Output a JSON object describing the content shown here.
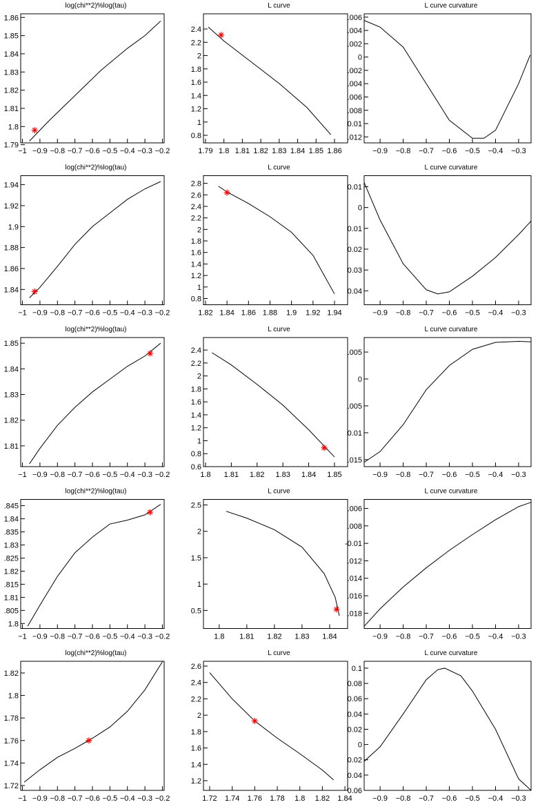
{
  "chart_data": [
    {
      "type": "line",
      "title": "log(chi**2)%log(tau)",
      "color": "#000000",
      "x": [
        -0.96,
        -0.85,
        -0.7,
        -0.55,
        -0.4,
        -0.3,
        -0.21
      ],
      "values": [
        1.792,
        1.803,
        1.817,
        1.831,
        1.843,
        1.85,
        1.858
      ],
      "highlight": {
        "x": -0.93,
        "y": 1.798,
        "color": "#ff0000"
      },
      "xlim": [
        -1.01,
        -0.19
      ],
      "ylim": [
        1.791,
        1.862
      ],
      "xticks": [
        {
          "value": -1,
          "label": "−1"
        },
        {
          "value": -0.9,
          "label": "−0.9"
        },
        {
          "value": -0.8,
          "label": "−0.8"
        },
        {
          "value": -0.7,
          "label": "−0.7"
        },
        {
          "value": -0.6,
          "label": "−0.6"
        },
        {
          "value": -0.5,
          "label": "−0.5"
        },
        {
          "value": -0.4,
          "label": "−0.4"
        },
        {
          "value": -0.3,
          "label": "−0.3"
        },
        {
          "value": -0.2,
          "label": "−0.2"
        }
      ],
      "yticks": [
        1.79,
        1.8,
        1.81,
        1.82,
        1.83,
        1.84,
        1.85,
        1.86
      ]
    },
    {
      "type": "line",
      "title": "L curve",
      "color": "#000000",
      "x": [
        1.7915,
        1.8,
        1.815,
        1.83,
        1.845,
        1.858
      ],
      "values": [
        2.43,
        2.22,
        1.9,
        1.58,
        1.22,
        0.81
      ],
      "highlight": {
        "x": 1.7985,
        "y": 2.31,
        "color": "#ff0000"
      },
      "xlim": [
        1.7889,
        1.8671
      ],
      "ylim": [
        0.686,
        2.629
      ],
      "xticks": [
        1.79,
        1.8,
        1.81,
        1.82,
        1.83,
        1.84,
        1.85,
        1.86
      ],
      "yticks": [
        0.8,
        1,
        1.2,
        1.4,
        1.6,
        1.8,
        2,
        2.2,
        2.4
      ]
    },
    {
      "type": "line",
      "title": "L curve curvature",
      "color": "#000000",
      "x": [
        -0.969,
        -0.9,
        -0.8,
        -0.7,
        -0.6,
        -0.5,
        -0.45,
        -0.4,
        -0.3,
        -0.25
      ],
      "values": [
        0.0055,
        0.0045,
        0.0015,
        -0.004,
        -0.0095,
        -0.0122,
        -0.0122,
        -0.011,
        -0.004,
        0.0003
      ],
      "xlim": [
        -0.969,
        -0.246
      ],
      "ylim": [
        -0.0129,
        0.0065
      ],
      "xticks": [
        {
          "value": -0.9,
          "label": "−0.9"
        },
        {
          "value": -0.8,
          "label": "−0.8"
        },
        {
          "value": -0.7,
          "label": "−0.7"
        },
        {
          "value": -0.6,
          "label": "−0.6"
        },
        {
          "value": -0.5,
          "label": "−0.5"
        },
        {
          "value": -0.4,
          "label": "−0.4"
        },
        {
          "value": -0.3,
          "label": "−0.3"
        }
      ],
      "yticks": [
        {
          "value": -0.012,
          "label": ".012"
        },
        {
          "value": -0.01,
          "label": "0.01"
        },
        {
          "value": -0.008,
          "label": ".008"
        },
        {
          "value": -0.006,
          "label": ".006"
        },
        {
          "value": -0.004,
          "label": ".004"
        },
        {
          "value": -0.002,
          "label": ".002"
        },
        0,
        {
          "value": 0.002,
          "label": ".002"
        },
        {
          "value": 0.004,
          "label": ".004"
        },
        {
          "value": 0.006,
          "label": ".006"
        }
      ]
    },
    {
      "type": "line",
      "title": "log(chi**2)%log(tau)",
      "color": "#000000",
      "x": [
        -0.96,
        -0.9,
        -0.8,
        -0.7,
        -0.6,
        -0.5,
        -0.4,
        -0.3,
        -0.21
      ],
      "values": [
        1.832,
        1.842,
        1.862,
        1.883,
        1.9,
        1.913,
        1.926,
        1.936,
        1.943
      ],
      "highlight": {
        "x": -0.93,
        "y": 1.838,
        "color": "#ff0000"
      },
      "xlim": [
        -1.01,
        -0.19
      ],
      "ylim": [
        1.8254,
        1.9486
      ],
      "xticks": [
        {
          "value": -1,
          "label": "−1"
        },
        {
          "value": -0.9,
          "label": "−0.9"
        },
        {
          "value": -0.8,
          "label": "−0.8"
        },
        {
          "value": -0.7,
          "label": "−0.7"
        },
        {
          "value": -0.6,
          "label": "−0.6"
        },
        {
          "value": -0.5,
          "label": "−0.5"
        },
        {
          "value": -0.4,
          "label": "−0.4"
        },
        {
          "value": -0.3,
          "label": "−0.3"
        },
        {
          "value": -0.2,
          "label": "−0.2"
        }
      ],
      "yticks": [
        1.84,
        1.86,
        1.88,
        1.9,
        1.92,
        1.94
      ]
    },
    {
      "type": "line",
      "title": "L curve",
      "color": "#000000",
      "x": [
        1.832,
        1.84,
        1.86,
        1.88,
        1.9,
        1.92,
        1.94
      ],
      "values": [
        2.75,
        2.65,
        2.45,
        2.22,
        1.95,
        1.55,
        0.88
      ],
      "highlight": {
        "x": 1.84,
        "y": 2.64,
        "color": "#ff0000"
      },
      "xlim": [
        1.8181,
        1.9522
      ],
      "ylim": [
        0.692,
        2.933
      ],
      "xticks": [
        1.82,
        1.84,
        1.86,
        1.88,
        1.9,
        1.92,
        1.94
      ],
      "yticks": [
        0.8,
        1,
        1.2,
        1.4,
        1.6,
        1.8,
        2,
        2.2,
        2.4,
        2.6,
        2.8
      ]
    },
    {
      "type": "line",
      "title": "L curve curvature",
      "color": "#000000",
      "x": [
        -0.969,
        -0.9,
        -0.8,
        -0.7,
        -0.65,
        -0.6,
        -0.5,
        -0.4,
        -0.3,
        -0.246
      ],
      "values": [
        0.012,
        -0.006,
        -0.027,
        -0.0395,
        -0.0415,
        -0.0405,
        -0.033,
        -0.024,
        -0.013,
        -0.0065
      ],
      "xlim": [
        -0.969,
        -0.246
      ],
      "ylim": [
        -0.0467,
        0.0153
      ],
      "xticks": [
        {
          "value": -0.9,
          "label": "−0.9"
        },
        {
          "value": -0.8,
          "label": "−0.8"
        },
        {
          "value": -0.7,
          "label": "−0.7"
        },
        {
          "value": -0.6,
          "label": "−0.6"
        },
        {
          "value": -0.5,
          "label": "−0.5"
        },
        {
          "value": -0.4,
          "label": "−0.4"
        },
        {
          "value": -0.3,
          "label": "−0.3"
        }
      ],
      "yticks": [
        {
          "value": -0.04,
          "label": "0.04"
        },
        {
          "value": -0.03,
          "label": "0.03"
        },
        {
          "value": -0.02,
          "label": "0.02"
        },
        {
          "value": -0.01,
          "label": "0.01"
        },
        0,
        0.01
      ]
    },
    {
      "type": "line",
      "title": "log(chi**2)%log(tau)",
      "color": "#000000",
      "x": [
        -0.96,
        -0.9,
        -0.8,
        -0.7,
        -0.6,
        -0.5,
        -0.4,
        -0.3,
        -0.21
      ],
      "values": [
        1.803,
        1.809,
        1.818,
        1.825,
        1.831,
        1.836,
        1.841,
        1.845,
        1.85
      ],
      "highlight": {
        "x": -0.27,
        "y": 1.846,
        "color": "#ff0000"
      },
      "xlim": [
        -1.01,
        -0.19
      ],
      "ylim": [
        1.8019,
        1.8522
      ],
      "xticks": [
        {
          "value": -1,
          "label": "−1"
        },
        {
          "value": -0.9,
          "label": "−0.9"
        },
        {
          "value": -0.8,
          "label": "−0.8"
        },
        {
          "value": -0.7,
          "label": "−0.7"
        },
        {
          "value": -0.6,
          "label": "−0.6"
        },
        {
          "value": -0.5,
          "label": "−0.5"
        },
        {
          "value": -0.4,
          "label": "−0.4"
        },
        {
          "value": -0.3,
          "label": "−0.3"
        },
        {
          "value": -0.2,
          "label": "−0.2"
        }
      ],
      "yticks": [
        1.81,
        1.82,
        1.83,
        1.84,
        1.85
      ]
    },
    {
      "type": "line",
      "title": "L curve",
      "color": "#000000",
      "x": [
        1.8025,
        1.81,
        1.82,
        1.83,
        1.84,
        1.85
      ],
      "values": [
        2.36,
        2.17,
        1.87,
        1.55,
        1.17,
        0.75
      ],
      "highlight": {
        "x": 1.846,
        "y": 0.89,
        "color": "#ff0000"
      },
      "xlim": [
        1.7992,
        1.8551
      ],
      "ylim": [
        0.6,
        2.593
      ],
      "xticks": [
        1.8,
        1.81,
        1.82,
        1.83,
        1.84,
        1.85
      ],
      "yticks": [
        0.6,
        0.8,
        1,
        1.2,
        1.4,
        1.6,
        1.8,
        2,
        2.2,
        2.4
      ]
    },
    {
      "type": "line",
      "title": "L curve curvature",
      "color": "#000000",
      "x": [
        -0.969,
        -0.9,
        -0.8,
        -0.7,
        -0.6,
        -0.5,
        -0.4,
        -0.3,
        -0.246
      ],
      "values": [
        -0.0155,
        -0.0135,
        -0.0085,
        -0.002,
        0.0025,
        0.0055,
        0.0068,
        0.007,
        0.0069
      ],
      "xlim": [
        -0.969,
        -0.246
      ],
      "ylim": [
        -0.0163,
        0.0077
      ],
      "xticks": [
        {
          "value": -0.9,
          "label": "−0.9"
        },
        {
          "value": -0.8,
          "label": "−0.8"
        },
        {
          "value": -0.7,
          "label": "−0.7"
        },
        {
          "value": -0.6,
          "label": "−0.6"
        },
        {
          "value": -0.5,
          "label": "−0.5"
        },
        {
          "value": -0.4,
          "label": "−0.4"
        },
        {
          "value": -0.3,
          "label": "−0.3"
        }
      ],
      "yticks": [
        {
          "value": -0.015,
          "label": ".015"
        },
        {
          "value": -0.01,
          "label": "0.01"
        },
        {
          "value": -0.005,
          "label": ".005"
        },
        0,
        {
          "value": 0.005,
          "label": ".005"
        }
      ]
    },
    {
      "type": "line",
      "title": "log(chi**2)%log(tau)",
      "color": "#000000",
      "x": [
        -0.97,
        -0.9,
        -0.8,
        -0.7,
        -0.6,
        -0.5,
        -0.4,
        -0.3,
        -0.21
      ],
      "values": [
        1.799,
        1.807,
        1.818,
        1.827,
        1.833,
        1.838,
        1.8395,
        1.8415,
        1.8455
      ],
      "highlight": {
        "x": -0.27,
        "y": 1.8425,
        "color": "#ff0000"
      },
      "xlim": [
        -1.01,
        -0.19
      ],
      "ylim": [
        1.7981,
        1.8474
      ],
      "xticks": [
        {
          "value": -1,
          "label": "−1"
        },
        {
          "value": -0.9,
          "label": "−0.9"
        },
        {
          "value": -0.8,
          "label": "−0.8"
        },
        {
          "value": -0.7,
          "label": "−0.7"
        },
        {
          "value": -0.6,
          "label": "−0.6"
        },
        {
          "value": -0.5,
          "label": "−0.5"
        },
        {
          "value": -0.4,
          "label": "−0.4"
        },
        {
          "value": -0.3,
          "label": "−0.3"
        },
        {
          "value": -0.2,
          "label": "−0.2"
        }
      ],
      "yticks": [
        1.8,
        {
          "value": 1.805,
          "label": ".805"
        },
        {
          "value": 1.81,
          "label": "1.81"
        },
        {
          "value": 1.815,
          "label": ".815"
        },
        1.82,
        {
          "value": 1.825,
          "label": ".825"
        },
        1.83,
        {
          "value": 1.835,
          "label": ".835"
        },
        {
          "value": 1.84,
          "label": "1.84"
        },
        {
          "value": 1.845,
          "label": ".845"
        }
      ]
    },
    {
      "type": "line",
      "title": "L curve",
      "color": "#000000",
      "x": [
        1.8025,
        1.81,
        1.82,
        1.83,
        1.838,
        1.842,
        1.8435
      ],
      "values": [
        2.38,
        2.25,
        2.03,
        1.7,
        1.2,
        0.75,
        0.4
      ],
      "highlight": {
        "x": 1.8425,
        "y": 0.52,
        "color": "#ff0000"
      },
      "xlim": [
        1.7943,
        1.8465
      ],
      "ylim": [
        0.158,
        2.605
      ],
      "xticks": [
        1.8,
        1.81,
        1.82,
        1.83,
        1.84
      ],
      "yticks": [
        0.5,
        1,
        1.5,
        2,
        2.5
      ]
    },
    {
      "type": "line",
      "title": "L curve curvature",
      "color": "#000000",
      "x": [
        -0.969,
        -0.9,
        -0.8,
        -0.7,
        -0.6,
        -0.5,
        -0.4,
        -0.3,
        -0.246
      ],
      "values": [
        -0.0195,
        -0.0175,
        -0.015,
        -0.0128,
        -0.0108,
        -0.009,
        -0.0073,
        -0.0058,
        -0.0053
      ],
      "xlim": [
        -0.969,
        -0.246
      ],
      "ylim": [
        -0.01975,
        -0.00497
      ],
      "xticks": [
        {
          "value": -0.9,
          "label": "−0.9"
        },
        {
          "value": -0.8,
          "label": "−0.8"
        },
        {
          "value": -0.7,
          "label": "−0.7"
        },
        {
          "value": -0.6,
          "label": "−0.6"
        },
        {
          "value": -0.5,
          "label": "−0.5"
        },
        {
          "value": -0.4,
          "label": "−0.4"
        },
        {
          "value": -0.3,
          "label": "−0.3"
        }
      ],
      "yticks": [
        {
          "value": -0.018,
          "label": ".018"
        },
        {
          "value": -0.016,
          "label": ".016"
        },
        {
          "value": -0.014,
          "label": ".014"
        },
        {
          "value": -0.012,
          "label": ".012"
        },
        {
          "value": -0.01,
          "label": "-0.01"
        },
        {
          "value": -0.008,
          "label": ".008"
        },
        {
          "value": -0.006,
          "label": ".006"
        }
      ]
    },
    {
      "type": "line",
      "title": "log(chi**2)%log(tau)",
      "color": "#000000",
      "x": [
        -0.99,
        -0.9,
        -0.8,
        -0.7,
        -0.6,
        -0.5,
        -0.4,
        -0.3,
        -0.2
      ],
      "values": [
        1.723,
        1.734,
        1.745,
        1.753,
        1.762,
        1.772,
        1.786,
        1.805,
        1.83
      ],
      "highlight": {
        "x": -0.62,
        "y": 1.76,
        "color": "#ff0000"
      },
      "xlim": [
        -1.01,
        -0.19
      ],
      "ylim": [
        1.7157,
        1.8304
      ],
      "xticks": [
        {
          "value": -1,
          "label": "−1"
        },
        {
          "value": -0.9,
          "label": "−0.9"
        },
        {
          "value": -0.8,
          "label": "−0.8"
        },
        {
          "value": -0.7,
          "label": "−0.7"
        },
        {
          "value": -0.6,
          "label": "−0.6"
        },
        {
          "value": -0.5,
          "label": "−0.5"
        },
        {
          "value": -0.4,
          "label": "−0.4"
        },
        {
          "value": -0.3,
          "label": "−0.3"
        },
        {
          "value": -0.2,
          "label": "−0.2"
        }
      ],
      "yticks": [
        1.72,
        1.74,
        1.76,
        1.78,
        1.8,
        1.82
      ]
    },
    {
      "type": "line",
      "title": "L curve",
      "color": "#000000",
      "x": [
        1.72,
        1.74,
        1.76,
        1.78,
        1.8,
        1.82,
        1.83
      ],
      "values": [
        2.52,
        2.2,
        1.93,
        1.72,
        1.53,
        1.33,
        1.21
      ],
      "highlight": {
        "x": 1.76,
        "y": 1.93,
        "color": "#ff0000"
      },
      "xlim": [
        1.7145,
        1.8424
      ],
      "ylim": [
        1.082,
        2.659
      ],
      "xticks": [
        1.72,
        1.74,
        1.76,
        1.78,
        1.8,
        1.82,
        1.84
      ],
      "yticks": [
        1.2,
        1.4,
        1.6,
        1.8,
        2,
        2.2,
        2.4,
        2.6
      ]
    },
    {
      "type": "line",
      "title": "L curve curvature",
      "color": "#000000",
      "x": [
        -0.969,
        -0.9,
        -0.8,
        -0.7,
        -0.65,
        -0.62,
        -0.55,
        -0.5,
        -0.4,
        -0.3,
        -0.246
      ],
      "values": [
        -0.022,
        -0.003,
        0.04,
        0.085,
        0.098,
        0.1,
        0.09,
        0.07,
        0.02,
        -0.045,
        -0.06
      ],
      "xlim": [
        -0.969,
        -0.246
      ],
      "ylim": [
        -0.06,
        0.109
      ],
      "xticks": [
        {
          "value": -0.9,
          "label": "−0.9"
        },
        {
          "value": -0.8,
          "label": "−0.8"
        },
        {
          "value": -0.7,
          "label": "−0.7"
        },
        {
          "value": -0.6,
          "label": "−0.6"
        },
        {
          "value": -0.5,
          "label": "−0.5"
        },
        {
          "value": -0.4,
          "label": "−0.4"
        },
        {
          "value": -0.3,
          "label": "−0.3"
        }
      ],
      "yticks": [
        {
          "value": -0.06,
          "label": "0.06"
        },
        {
          "value": -0.04,
          "label": "0.04"
        },
        {
          "value": -0.02,
          "label": "0.02"
        },
        0,
        0.02,
        0.04,
        0.06,
        0.08,
        0.1
      ]
    }
  ]
}
